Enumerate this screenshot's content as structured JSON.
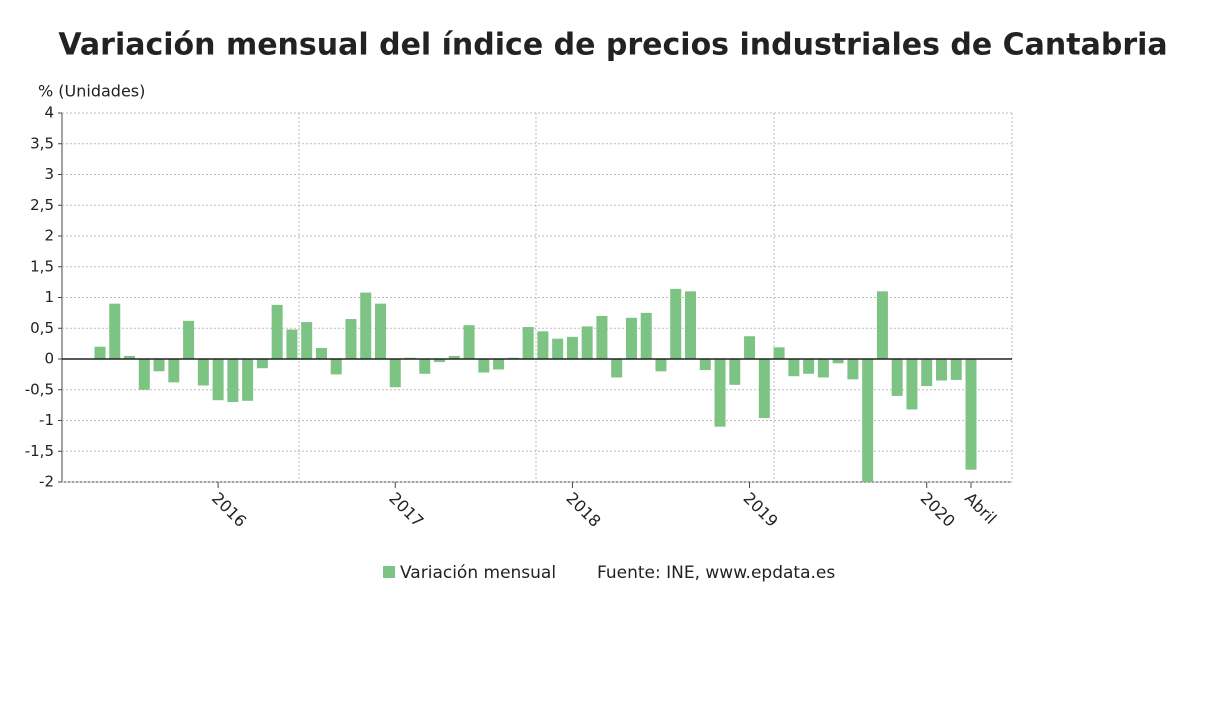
{
  "chart_data": {
    "type": "bar",
    "title": "Variación mensual del índice de precios industriales de Cantabria",
    "y_label": "% (Unidades)",
    "source": "Fuente: INE, www.epdata.es",
    "color": "#7dc383",
    "grid": true,
    "categories": [
      null,
      null,
      null,
      null,
      null,
      null,
      null,
      null,
      "2016",
      null,
      null,
      null,
      null,
      null,
      null,
      null,
      null,
      null,
      null,
      null,
      "2017",
      null,
      null,
      null,
      null,
      null,
      null,
      null,
      null,
      null,
      null,
      null,
      "2018",
      null,
      null,
      null,
      null,
      null,
      null,
      null,
      null,
      null,
      null,
      null,
      "2019",
      null,
      null,
      null,
      null,
      null,
      null,
      null,
      null,
      null,
      null,
      null,
      "2020",
      null,
      null,
      "Abril"
    ],
    "series": [
      {
        "name": "Variación mensual",
        "color": "#7dc383",
        "values": [
          0.2,
          0.9,
          0.05,
          -0.5,
          -0.2,
          -0.38,
          0.62,
          -0.43,
          -0.67,
          -0.7,
          -0.68,
          -0.15,
          0.88,
          0.48,
          0.6,
          0.18,
          -0.25,
          0.65,
          1.08,
          0.9,
          -0.46,
          0.02,
          -0.24,
          -0.05,
          0.05,
          0.55,
          -0.22,
          -0.17,
          0.02,
          0.52,
          0.45,
          0.33,
          0.36,
          0.53,
          0.7,
          -0.3,
          0.67,
          0.75,
          -0.2,
          1.14,
          1.1,
          -0.18,
          -1.1,
          -0.42,
          0.37,
          -0.96,
          0.19,
          -0.28,
          -0.24,
          -0.3,
          -0.07,
          -0.33,
          -2.0,
          1.1,
          -0.6,
          -0.82,
          -0.44,
          -0.35,
          -0.34,
          -1.8
        ]
      }
    ],
    "ylim": [
      -2,
      4
    ],
    "yticks": [
      -2,
      {
        "value": -1.5,
        "label": "-1,5"
      },
      -1,
      {
        "value": -0.5,
        "label": "-0,5"
      },
      0,
      {
        "value": 0.5,
        "label": "0,5"
      },
      1,
      {
        "value": 1.5,
        "label": "1,5"
      },
      2,
      {
        "value": 2.5,
        "label": "2,5"
      },
      3,
      {
        "value": 3.5,
        "label": "3,5"
      },
      4
    ]
  }
}
